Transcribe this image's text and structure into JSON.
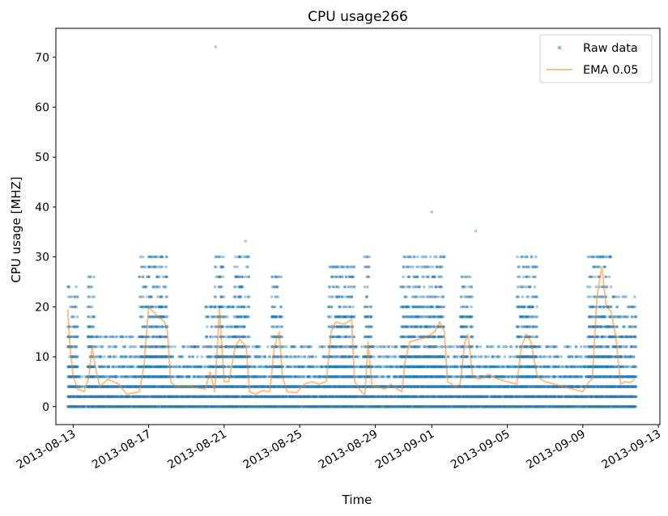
{
  "chart_data": {
    "type": "scatter",
    "title": "CPU usage266",
    "xlabel": "Time",
    "ylabel": "CPU usage [MHZ]",
    "x_type": "date",
    "xlim": [
      "2013-08-12 02:00",
      "2013-09-13 02:00"
    ],
    "ylim": [
      -3.6,
      75.8
    ],
    "x_ticks": [
      "2013-08-13",
      "2013-08-17",
      "2013-08-21",
      "2013-08-25",
      "2013-08-29",
      "2013-09-01",
      "2013-09-05",
      "2013-09-09",
      "2013-09-13"
    ],
    "y_ticks": [
      0,
      10,
      20,
      30,
      40,
      50,
      60,
      70
    ],
    "grid": false,
    "legend": "top-right",
    "raw_levels": [
      0,
      2,
      4,
      6,
      8,
      10,
      12,
      14,
      16,
      18,
      20,
      22,
      24,
      26,
      28,
      30
    ],
    "series": [
      {
        "name": "Raw data",
        "kind": "scatter",
        "color": "#1f77b4",
        "alpha": 0.4,
        "outliers": [
          {
            "x": "2013-08-20 13:00",
            "y": 72.1
          },
          {
            "x": "2013-08-22 03:00",
            "y": 33.2
          },
          {
            "x": "2013-09-01 00:00",
            "y": 39.0
          },
          {
            "x": "2013-09-03 08:00",
            "y": 35.2
          }
        ],
        "regimes": [
          {
            "start": "2013-08-12 17:00",
            "end": "2013-08-13 06:00",
            "low": 0,
            "high": 24
          },
          {
            "start": "2013-08-13 06:00",
            "end": "2013-08-13 18:00",
            "low": 0,
            "high": 6
          },
          {
            "start": "2013-08-13 18:00",
            "end": "2013-08-14 03:00",
            "low": 0,
            "high": 26
          },
          {
            "start": "2013-08-14 03:00",
            "end": "2013-08-16 12:00",
            "low": 0,
            "high": 14
          },
          {
            "start": "2013-08-16 12:00",
            "end": "2013-08-18 00:00",
            "low": 0,
            "high": 30
          },
          {
            "start": "2013-08-18 00:00",
            "end": "2013-08-20 00:00",
            "low": 0,
            "high": 12
          },
          {
            "start": "2013-08-20 00:00",
            "end": "2013-08-20 12:00",
            "low": 0,
            "high": 20
          },
          {
            "start": "2013-08-20 12:00",
            "end": "2013-08-21 00:00",
            "low": 0,
            "high": 30
          },
          {
            "start": "2013-08-21 00:00",
            "end": "2013-08-21 12:00",
            "low": 0,
            "high": 20
          },
          {
            "start": "2013-08-21 12:00",
            "end": "2013-08-22 08:00",
            "low": 0,
            "high": 30
          },
          {
            "start": "2013-08-22 08:00",
            "end": "2013-08-23 12:00",
            "low": 0,
            "high": 12
          },
          {
            "start": "2013-08-23 12:00",
            "end": "2013-08-24 02:00",
            "low": 0,
            "high": 26
          },
          {
            "start": "2013-08-24 02:00",
            "end": "2013-08-26 12:00",
            "low": 0,
            "high": 12
          },
          {
            "start": "2013-08-26 12:00",
            "end": "2013-08-27 22:00",
            "low": 0,
            "high": 28
          },
          {
            "start": "2013-08-27 22:00",
            "end": "2013-08-28 10:00",
            "low": 0,
            "high": 12
          },
          {
            "start": "2013-08-28 10:00",
            "end": "2013-08-28 20:00",
            "low": 0,
            "high": 30
          },
          {
            "start": "2013-08-28 20:00",
            "end": "2013-08-30 08:00",
            "low": 0,
            "high": 12
          },
          {
            "start": "2013-08-30 08:00",
            "end": "2013-09-01 16:00",
            "low": 0,
            "high": 30
          },
          {
            "start": "2013-09-01 16:00",
            "end": "2013-09-02 12:00",
            "low": 0,
            "high": 12
          },
          {
            "start": "2013-09-02 12:00",
            "end": "2013-09-03 04:00",
            "low": 0,
            "high": 26
          },
          {
            "start": "2013-09-03 04:00",
            "end": "2013-09-05 12:00",
            "low": 0,
            "high": 12
          },
          {
            "start": "2013-09-05 12:00",
            "end": "2013-09-06 14:00",
            "low": 0,
            "high": 30
          },
          {
            "start": "2013-09-06 14:00",
            "end": "2013-09-09 06:00",
            "low": 0,
            "high": 12
          },
          {
            "start": "2013-09-09 06:00",
            "end": "2013-09-10 12:00",
            "low": 0,
            "high": 30
          },
          {
            "start": "2013-09-10 12:00",
            "end": "2013-09-11 20:00",
            "low": 0,
            "high": 22
          }
        ]
      },
      {
        "name": "EMA 0.05",
        "kind": "line",
        "color": "#ff7f0e",
        "alpha": 0.5,
        "points": [
          [
            "2013-08-12 17:00",
            19.5
          ],
          [
            "2013-08-12 20:00",
            12
          ],
          [
            "2013-08-13 00:00",
            6
          ],
          [
            "2013-08-13 06:00",
            3.5
          ],
          [
            "2013-08-13 14:00",
            3.0
          ],
          [
            "2013-08-13 20:00",
            6
          ],
          [
            "2013-08-14 00:00",
            12
          ],
          [
            "2013-08-14 04:00",
            8
          ],
          [
            "2013-08-14 10:00",
            4
          ],
          [
            "2013-08-14 20:00",
            5.5
          ],
          [
            "2013-08-15 10:00",
            4.5
          ],
          [
            "2013-08-15 20:00",
            2.5
          ],
          [
            "2013-08-16 12:00",
            3.0
          ],
          [
            "2013-08-16 18:00",
            8
          ],
          [
            "2013-08-17 00:00",
            20
          ],
          [
            "2013-08-17 06:00",
            19
          ],
          [
            "2013-08-17 12:00",
            18
          ],
          [
            "2013-08-17 20:00",
            17
          ],
          [
            "2013-08-18 00:00",
            15
          ],
          [
            "2013-08-18 04:00",
            5
          ],
          [
            "2013-08-18 10:00",
            4
          ],
          [
            "2013-08-19 00:00",
            4.2
          ],
          [
            "2013-08-19 12:00",
            3.8
          ],
          [
            "2013-08-20 00:00",
            3.5
          ],
          [
            "2013-08-20 06:00",
            7
          ],
          [
            "2013-08-20 12:00",
            3
          ],
          [
            "2013-08-20 18:00",
            19.5
          ],
          [
            "2013-08-21 00:00",
            5
          ],
          [
            "2013-08-21 06:00",
            5
          ],
          [
            "2013-08-21 14:00",
            12
          ],
          [
            "2013-08-21 20:00",
            13.5
          ],
          [
            "2013-08-22 04:00",
            12
          ],
          [
            "2013-08-22 08:00",
            3
          ],
          [
            "2013-08-22 16:00",
            2.5
          ],
          [
            "2013-08-23 00:00",
            3.2
          ],
          [
            "2013-08-23 10:00",
            3.0
          ],
          [
            "2013-08-23 16:00",
            12
          ],
          [
            "2013-08-23 22:00",
            15
          ],
          [
            "2013-08-24 02:00",
            6
          ],
          [
            "2013-08-24 08:00",
            3.0
          ],
          [
            "2013-08-24 20:00",
            2.8
          ],
          [
            "2013-08-25 06:00",
            4.5
          ],
          [
            "2013-08-25 16:00",
            5
          ],
          [
            "2013-08-26 00:00",
            4.5
          ],
          [
            "2013-08-26 10:00",
            5
          ],
          [
            "2013-08-26 16:00",
            15
          ],
          [
            "2013-08-26 22:00",
            17
          ],
          [
            "2013-08-27 08:00",
            16.5
          ],
          [
            "2013-08-27 18:00",
            17.5
          ],
          [
            "2013-08-27 22:00",
            5
          ],
          [
            "2013-08-28 06:00",
            3
          ],
          [
            "2013-08-28 11:00",
            2.5
          ],
          [
            "2013-08-28 15:00",
            13
          ],
          [
            "2013-08-28 20:00",
            4
          ],
          [
            "2013-08-29 04:00",
            4
          ],
          [
            "2013-08-29 12:00",
            3.5
          ],
          [
            "2013-08-29 20:00",
            4.5
          ],
          [
            "2013-08-30 04:00",
            3.5
          ],
          [
            "2013-08-30 10:00",
            3
          ],
          [
            "2013-08-30 14:00",
            9
          ],
          [
            "2013-08-30 20:00",
            13
          ],
          [
            "2013-08-31 08:00",
            13.5
          ],
          [
            "2013-08-31 18:00",
            14
          ],
          [
            "2013-09-01 04:00",
            15
          ],
          [
            "2013-09-01 10:00",
            17
          ],
          [
            "2013-09-01 16:00",
            15
          ],
          [
            "2013-09-01 20:00",
            5
          ],
          [
            "2013-09-02 06:00",
            4
          ],
          [
            "2013-09-02 12:00",
            4.5
          ],
          [
            "2013-09-02 18:00",
            13
          ],
          [
            "2013-09-02 22:00",
            14.5
          ],
          [
            "2013-09-03 04:00",
            6
          ],
          [
            "2013-09-03 12:00",
            5.5
          ],
          [
            "2013-09-04 00:00",
            6.5
          ],
          [
            "2013-09-04 12:00",
            5.5
          ],
          [
            "2013-09-05 00:00",
            5
          ],
          [
            "2013-09-05 12:00",
            4.5
          ],
          [
            "2013-09-05 18:00",
            12
          ],
          [
            "2013-09-06 00:00",
            14.5
          ],
          [
            "2013-09-06 06:00",
            13
          ],
          [
            "2013-09-06 14:00",
            6
          ],
          [
            "2013-09-07 00:00",
            5
          ],
          [
            "2013-09-07 12:00",
            4.5
          ],
          [
            "2013-09-08 00:00",
            4
          ],
          [
            "2013-09-08 12:00",
            3.5
          ],
          [
            "2013-09-09 00:00",
            3.0
          ],
          [
            "2013-09-09 08:00",
            5
          ],
          [
            "2013-09-09 12:00",
            5.5
          ],
          [
            "2013-09-09 18:00",
            22
          ],
          [
            "2013-09-10 00:00",
            28
          ],
          [
            "2013-09-10 06:00",
            20
          ],
          [
            "2013-09-10 12:00",
            19
          ],
          [
            "2013-09-10 18:00",
            14
          ],
          [
            "2013-09-11 00:00",
            4.5
          ],
          [
            "2013-09-11 06:00",
            5
          ],
          [
            "2013-09-11 12:00",
            4.8
          ],
          [
            "2013-09-11 18:00",
            5.5
          ]
        ]
      }
    ]
  }
}
